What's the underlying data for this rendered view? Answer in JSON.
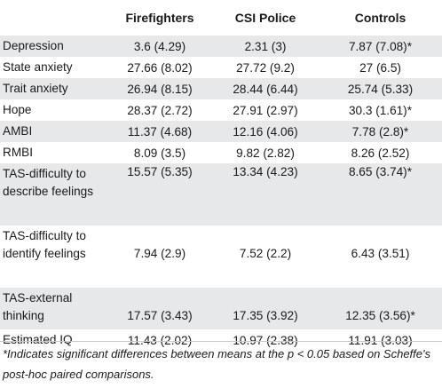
{
  "table": {
    "headers": [
      "",
      "Firefighters",
      "CSI Police",
      "Controls"
    ],
    "rows": [
      {
        "label": "Depression",
        "values": [
          "3.6 (4.29)",
          "2.31 (3)",
          "7.87 (7.08)*"
        ]
      },
      {
        "label": "State anxiety",
        "values": [
          "27.66 (8.02)",
          "27.72 (9.2)",
          "27 (6.5)"
        ]
      },
      {
        "label": "Trait anxiety",
        "values": [
          "26.94 (8.15)",
          "28.44 (6.44)",
          "25.74 (5.33)"
        ]
      },
      {
        "label": "Hope",
        "values": [
          "28.37 (2.72)",
          "27.91 (2.97)",
          "30.3 (1.61)*"
        ]
      },
      {
        "label": "AMBI",
        "values": [
          "11.37 (4.68)",
          "12.16 (4.06)",
          "7.78 (2.8)*"
        ]
      },
      {
        "label": "RMBI",
        "values": [
          "8.09 (3.5)",
          "9.82 (2.82)",
          "8.26 (2.52)"
        ]
      },
      {
        "label": "TAS-difficulty to describe feelings",
        "values": [
          "15.57 (5.35)",
          "13.34 (4.23)",
          "8.65 (3.74)*"
        ]
      },
      {
        "label": "TAS-difficulty to identify feelings",
        "values": [
          "7.94 (2.9)",
          "7.52 (2.2)",
          "6.43 (3.51)"
        ]
      },
      {
        "label": "TAS-external thinking",
        "values": [
          "17.57 (3.43)",
          "17.35 (3.92)",
          "12.35 (3.56)*"
        ]
      },
      {
        "label": "Estimated IQ",
        "values": [
          "11.43 (2.02)",
          "10.97 (2.38)",
          "11.91 (3.03)"
        ]
      }
    ]
  },
  "footnote": "*Indicates significant differences between means at the p < 0.05 based on Scheffe's post-hoc paired comparisons."
}
